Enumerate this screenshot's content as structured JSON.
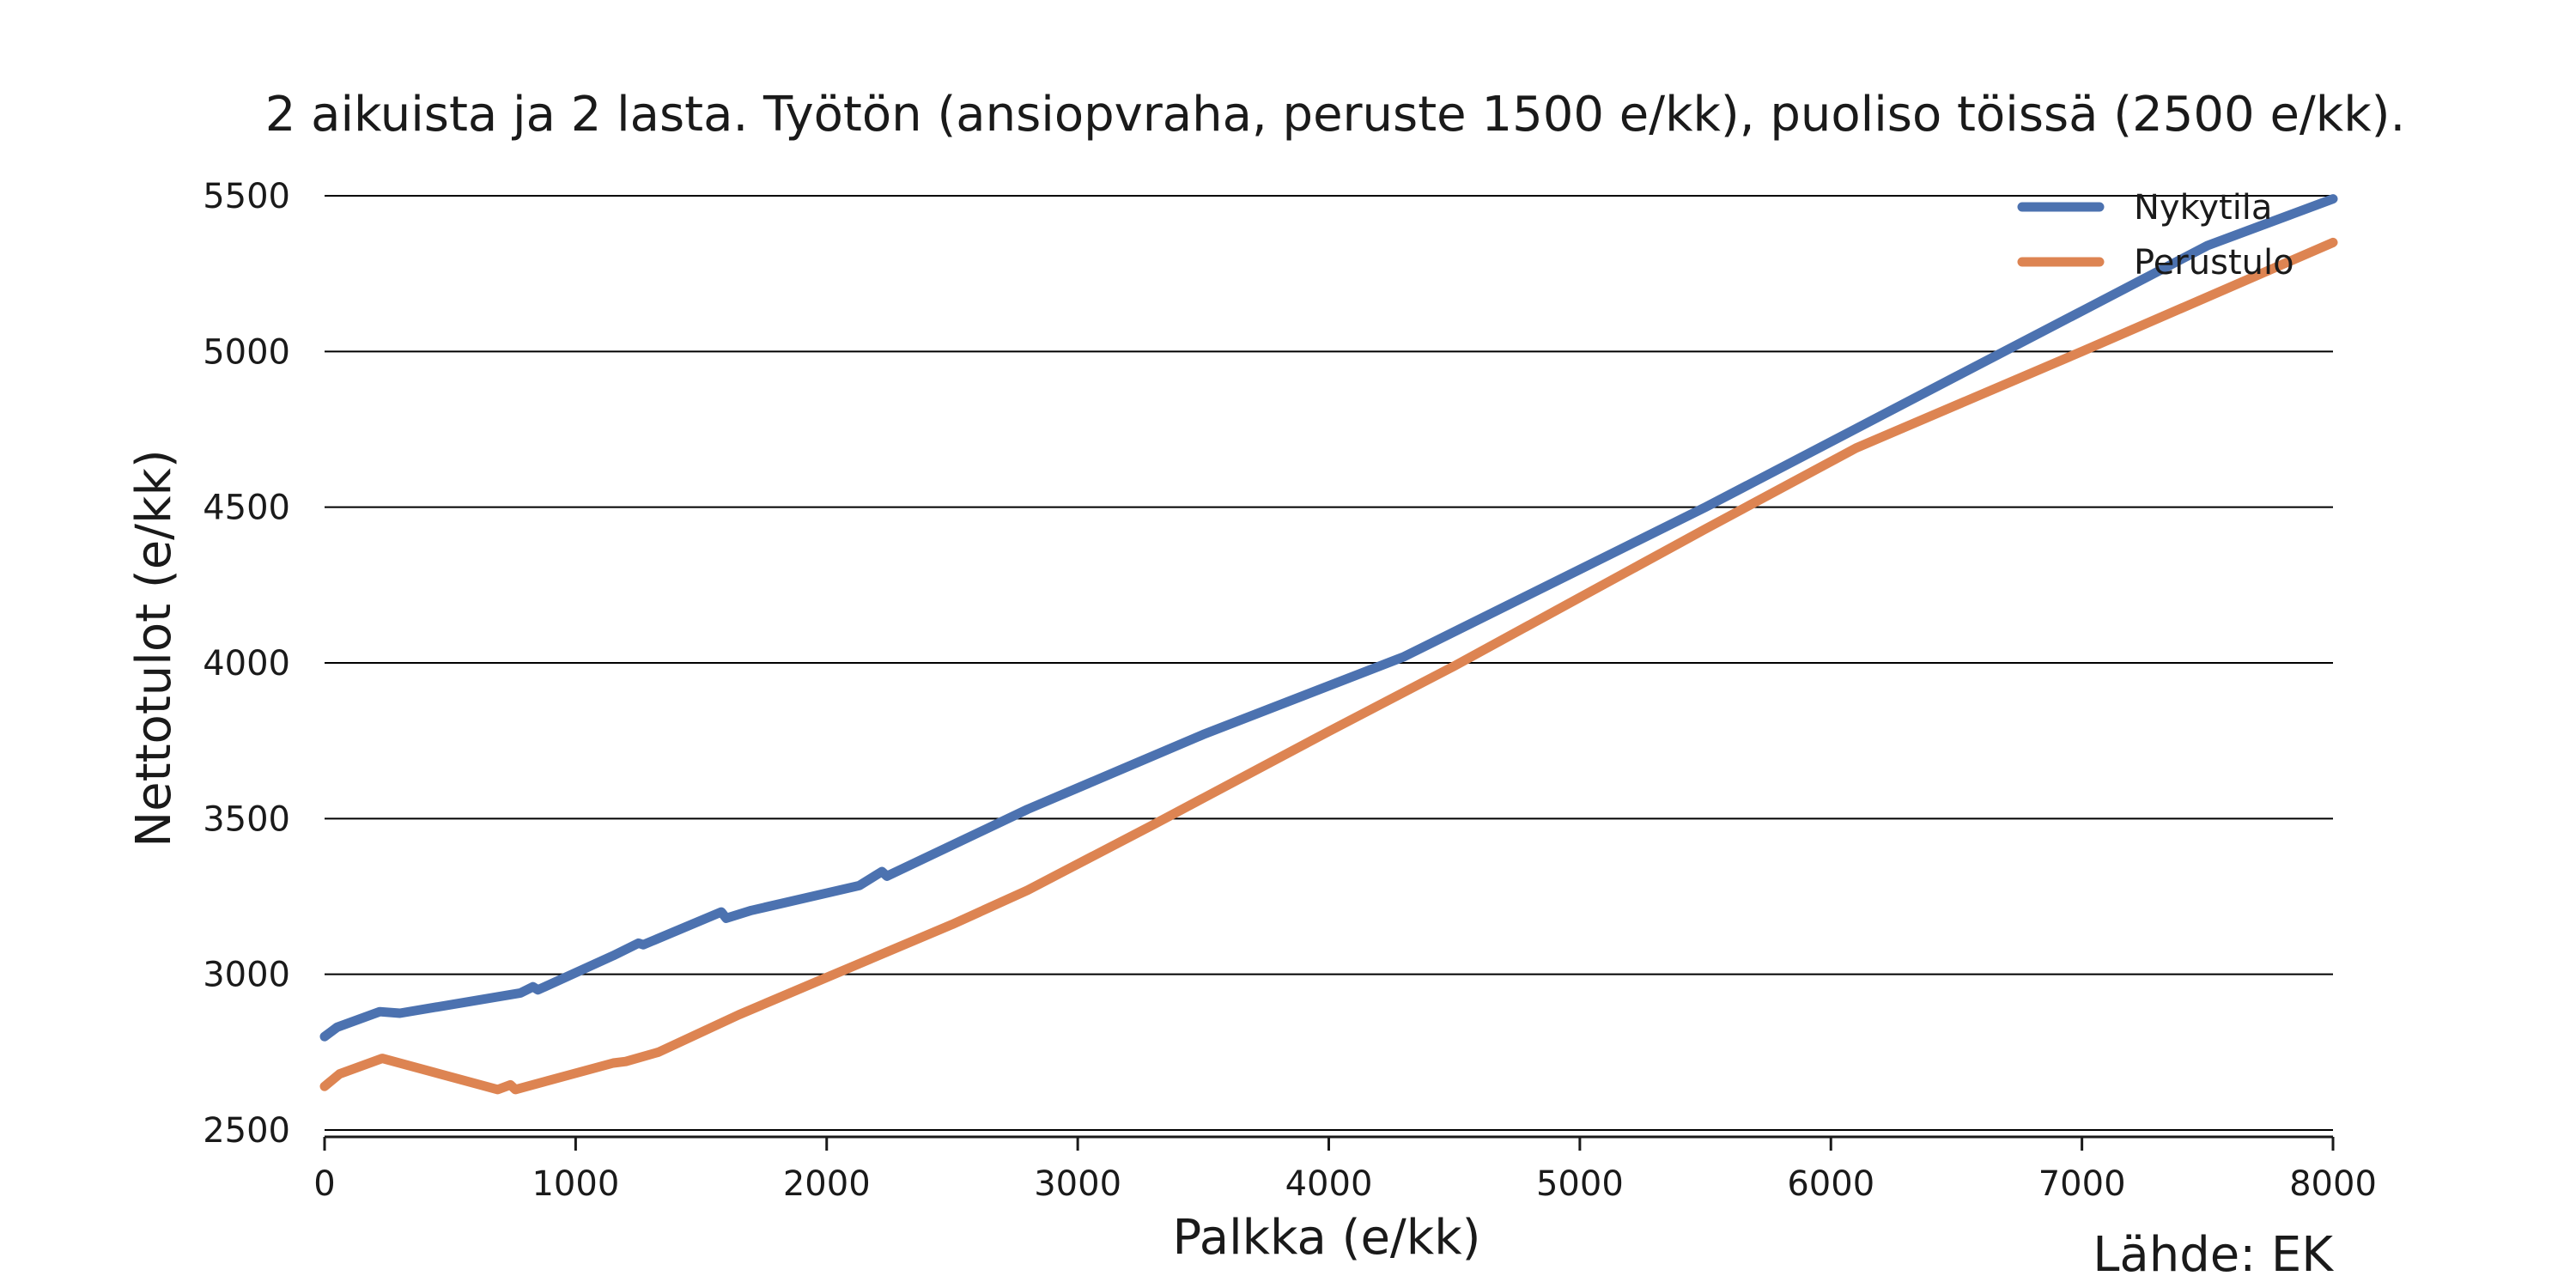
{
  "chart_data": {
    "type": "line",
    "title": "2 aikuista ja 2 lasta. Työtön (ansiopvraha, peruste 1500 e/kk), puoliso töissä (2500 e/kk).",
    "xlabel": "Palkka (e/kk)",
    "ylabel": "Nettotulot (e/kk)",
    "source": "Lähde: EK",
    "xlim": [
      0,
      8000
    ],
    "ylim": [
      2500,
      5500
    ],
    "xticks": [
      0,
      1000,
      2000,
      3000,
      4000,
      5000,
      6000,
      7000,
      8000
    ],
    "yticks": [
      2500,
      3000,
      3500,
      4000,
      4500,
      5000,
      5500
    ],
    "grid": "horizontal",
    "legend_position": "top-right",
    "series": [
      {
        "name": "Nykytila",
        "color": "#4c72b0",
        "x": [
          0,
          50,
          220,
          300,
          780,
          830,
          850,
          1150,
          1250,
          1270,
          1580,
          1600,
          1700,
          2130,
          2220,
          2240,
          2800,
          3500,
          4300,
          4500,
          5000,
          5500,
          6000,
          6500,
          7000,
          7500,
          8000
        ],
        "y": [
          2800,
          2830,
          2880,
          2875,
          2940,
          2960,
          2950,
          3060,
          3100,
          3095,
          3200,
          3180,
          3205,
          3285,
          3330,
          3315,
          3530,
          3770,
          4020,
          4100,
          4300,
          4500,
          4710,
          4920,
          5130,
          5340,
          5490
        ]
      },
      {
        "name": "Perustulo",
        "color": "#dd8452",
        "x": [
          0,
          60,
          230,
          690,
          740,
          760,
          1150,
          1200,
          1330,
          1650,
          2000,
          2500,
          2800,
          3300,
          4000,
          4500,
          5000,
          5500,
          6100,
          7000,
          8000
        ],
        "y": [
          2640,
          2680,
          2730,
          2630,
          2645,
          2630,
          2715,
          2720,
          2750,
          2870,
          2990,
          3160,
          3270,
          3480,
          3780,
          3990,
          4210,
          4430,
          4690,
          5000,
          5350
        ]
      }
    ]
  }
}
